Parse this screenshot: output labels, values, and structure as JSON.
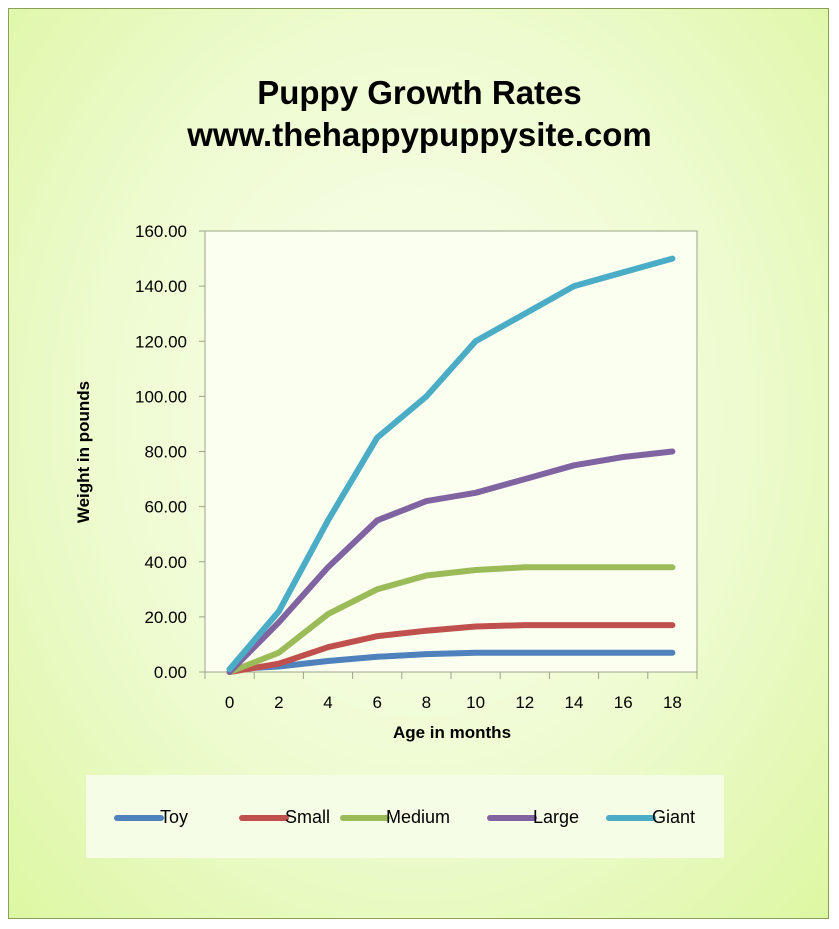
{
  "title_line1": "Puppy Growth Rates",
  "title_line2": "www.thehappypuppysite.com",
  "chart_data": {
    "type": "line",
    "title": "Puppy Growth Rates www.thehappypuppysite.com",
    "xlabel": "Age in months",
    "ylabel": "Weight in pounds",
    "x": [
      0,
      2,
      4,
      6,
      8,
      10,
      12,
      14,
      16,
      18
    ],
    "x_tick_labels": [
      "0",
      "2",
      "4",
      "6",
      "8",
      "10",
      "12",
      "14",
      "16",
      "18"
    ],
    "ylim": [
      0,
      160
    ],
    "y_tick_labels": [
      "0.00",
      "20.00",
      "40.00",
      "60.00",
      "80.00",
      "100.00",
      "120.00",
      "140.00",
      "160.00"
    ],
    "grid": false,
    "legend": "bottom",
    "series": [
      {
        "name": "Toy",
        "color": "#4f81bd",
        "values": [
          1,
          2,
          4,
          5.5,
          6.5,
          7,
          7,
          7,
          7,
          7
        ]
      },
      {
        "name": "Small",
        "color": "#c0504d",
        "values": [
          0,
          3,
          9,
          13,
          15,
          16.5,
          17,
          17,
          17,
          17
        ]
      },
      {
        "name": "Medium",
        "color": "#9bbb59",
        "values": [
          0,
          7,
          21,
          30,
          35,
          37,
          38,
          38,
          38,
          38
        ]
      },
      {
        "name": "Large",
        "color": "#8064a2",
        "values": [
          0,
          18,
          38,
          55,
          62,
          65,
          70,
          75,
          78,
          80
        ]
      },
      {
        "name": "Giant",
        "color": "#4bacc6",
        "values": [
          1,
          22,
          55,
          85,
          100,
          120,
          130,
          140,
          145,
          150
        ]
      }
    ]
  }
}
